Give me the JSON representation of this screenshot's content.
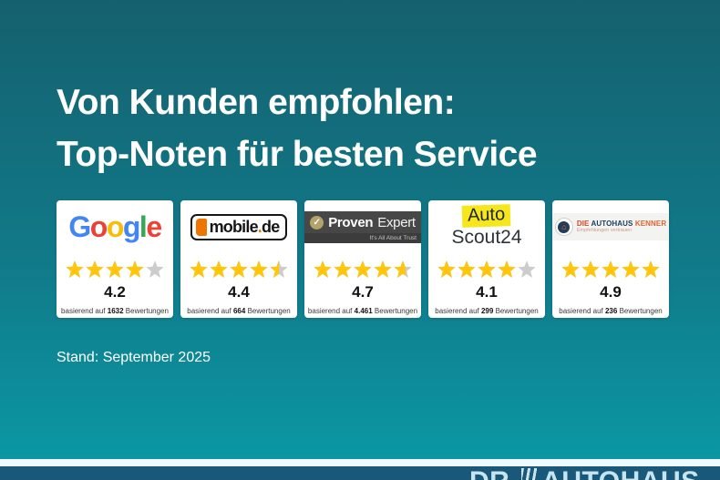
{
  "title": {
    "line1": "Von Kunden empfohlen:",
    "line2": "Top-Noten für besten Service"
  },
  "footnote": "Stand: September 2025",
  "colors": {
    "background_top": "#15606e",
    "background_bottom": "#0a9aa7",
    "card_bg": "#ffffff",
    "star_gold": "#ffc60b",
    "star_empty": "#cccccc",
    "divider": "#eefafc",
    "footer_bar": "#195878",
    "footer_text": "#c6e5ef"
  },
  "google_logo": {
    "letters": [
      {
        "char": "G",
        "color": "#4285F4"
      },
      {
        "char": "o",
        "color": "#EA4335"
      },
      {
        "char": "o",
        "color": "#FBBC05"
      },
      {
        "char": "g",
        "color": "#4285F4"
      },
      {
        "char": "l",
        "color": "#34A853"
      },
      {
        "char": "e",
        "color": "#EA4335"
      }
    ]
  },
  "cards": [
    {
      "provider": "Google",
      "stars": 4.0,
      "rating": "4.2",
      "review_prefix": "basierend auf",
      "review_count": "1632",
      "review_suffix": "Bewertungen"
    },
    {
      "provider": "mobile.de",
      "stars": 4.5,
      "rating": "4.4",
      "review_prefix": "basierend auf",
      "review_count": "664",
      "review_suffix": "Bewertungen",
      "logo": {
        "text_main": "mobile",
        "text_dot": ".",
        "text_tld": "de"
      }
    },
    {
      "provider": "ProvenExpert",
      "stars": 4.65,
      "rating": "4.7",
      "review_prefix": "basierend auf",
      "review_count": "4.461",
      "review_suffix": "Bewertungen",
      "logo": {
        "check": "✓",
        "word1": "Proven",
        "word2": "Expert",
        "tagline": "It's All About Trust"
      }
    },
    {
      "provider": "AutoScout24",
      "stars": 4.0,
      "rating": "4.1",
      "review_prefix": "basierend auf",
      "review_count": "299",
      "review_suffix": "Bewertungen",
      "logo": {
        "line1": "Auto",
        "line2": "Scout24"
      }
    },
    {
      "provider": "Die Autohaus Kenner",
      "stars": 5.0,
      "rating": "4.9",
      "review_prefix": "basierend auf",
      "review_count": "236",
      "review_suffix": "Bewertungen",
      "logo": {
        "house_icon": "⌂",
        "brand_die": "DIE",
        "brand_autohaus": "AUTOHAUS",
        "brand_kenner": "KENNER",
        "tagline": "Empfehlungen vertrauen"
      }
    }
  ],
  "footer": {
    "brand_prefix": "DR.",
    "brand_name": "AUTOHAUS"
  }
}
